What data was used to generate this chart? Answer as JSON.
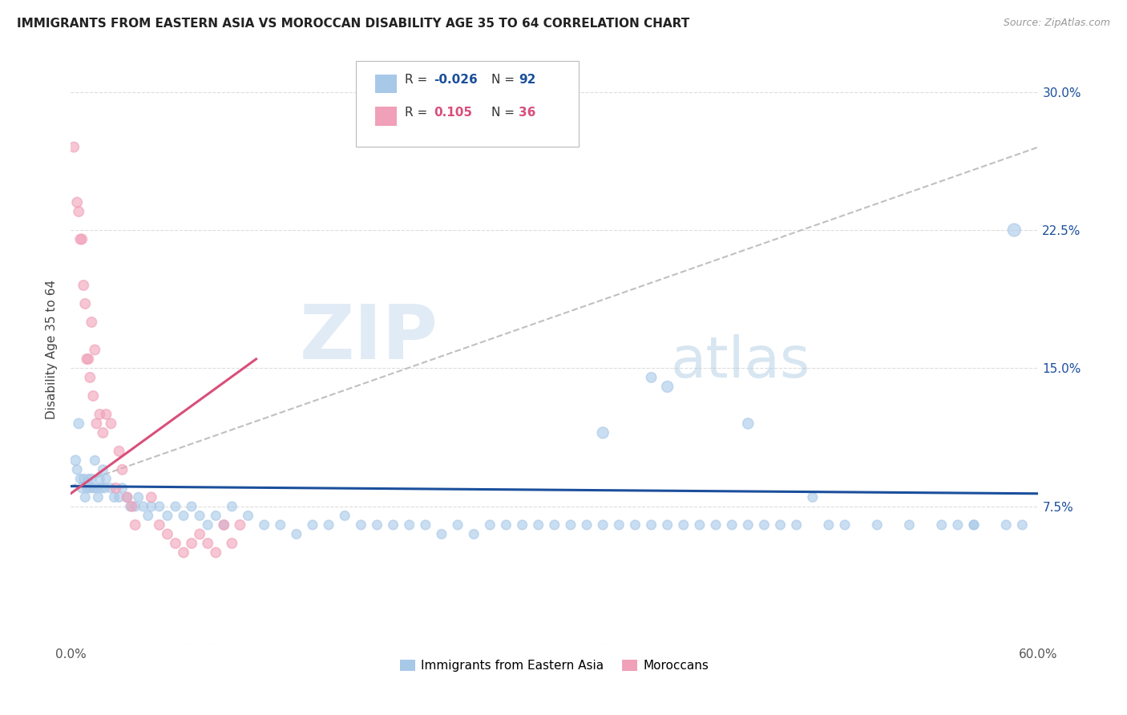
{
  "title": "IMMIGRANTS FROM EASTERN ASIA VS MOROCCAN DISABILITY AGE 35 TO 64 CORRELATION CHART",
  "source": "Source: ZipAtlas.com",
  "ylabel": "Disability Age 35 to 64",
  "xlim": [
    0.0,
    0.6
  ],
  "ylim": [
    0.0,
    0.32
  ],
  "xticks": [
    0.0,
    0.1,
    0.2,
    0.3,
    0.4,
    0.5,
    0.6
  ],
  "xticklabels": [
    "0.0%",
    "",
    "",
    "",
    "",
    "",
    "60.0%"
  ],
  "yticks": [
    0.0,
    0.075,
    0.15,
    0.225,
    0.3
  ],
  "yticklabels_right": [
    "",
    "7.5%",
    "15.0%",
    "22.5%",
    "30.0%"
  ],
  "legend_blue_label": "Immigrants from Eastern Asia",
  "legend_pink_label": "Moroccans",
  "R_blue": -0.026,
  "N_blue": 92,
  "R_pink": 0.105,
  "N_pink": 36,
  "blue_color": "#A8C8E8",
  "pink_color": "#F0A0B8",
  "blue_line_color": "#1B4F9C",
  "pink_line_color": "#D94F7A",
  "gray_dash_color": "#C0C0C0",
  "watermark_zip": "ZIP",
  "watermark_atlas": "atlas",
  "blue_line_x": [
    0.0,
    0.6
  ],
  "blue_line_y": [
    0.086,
    0.082
  ],
  "pink_line_x": [
    0.0,
    0.115
  ],
  "pink_line_y": [
    0.082,
    0.155
  ],
  "gray_line_x": [
    0.0,
    0.6
  ],
  "gray_line_y": [
    0.086,
    0.27
  ],
  "blue_scatter_x": [
    0.003,
    0.004,
    0.005,
    0.006,
    0.007,
    0.008,
    0.009,
    0.01,
    0.011,
    0.012,
    0.013,
    0.014,
    0.015,
    0.016,
    0.017,
    0.018,
    0.019,
    0.02,
    0.021,
    0.022,
    0.025,
    0.027,
    0.03,
    0.032,
    0.035,
    0.037,
    0.04,
    0.042,
    0.045,
    0.048,
    0.05,
    0.055,
    0.06,
    0.065,
    0.07,
    0.075,
    0.08,
    0.085,
    0.09,
    0.095,
    0.1,
    0.11,
    0.12,
    0.13,
    0.14,
    0.15,
    0.16,
    0.17,
    0.18,
    0.19,
    0.2,
    0.21,
    0.22,
    0.23,
    0.24,
    0.25,
    0.26,
    0.27,
    0.28,
    0.29,
    0.3,
    0.31,
    0.32,
    0.33,
    0.34,
    0.35,
    0.36,
    0.37,
    0.38,
    0.39,
    0.4,
    0.41,
    0.42,
    0.43,
    0.44,
    0.45,
    0.46,
    0.47,
    0.48,
    0.5,
    0.52,
    0.54,
    0.55,
    0.56,
    0.58,
    0.59,
    0.33,
    0.36,
    0.37,
    0.42,
    0.56,
    0.585
  ],
  "blue_scatter_y": [
    0.1,
    0.095,
    0.12,
    0.09,
    0.085,
    0.09,
    0.08,
    0.085,
    0.09,
    0.085,
    0.09,
    0.085,
    0.1,
    0.085,
    0.08,
    0.09,
    0.085,
    0.095,
    0.085,
    0.09,
    0.085,
    0.08,
    0.08,
    0.085,
    0.08,
    0.075,
    0.075,
    0.08,
    0.075,
    0.07,
    0.075,
    0.075,
    0.07,
    0.075,
    0.07,
    0.075,
    0.07,
    0.065,
    0.07,
    0.065,
    0.075,
    0.07,
    0.065,
    0.065,
    0.06,
    0.065,
    0.065,
    0.07,
    0.065,
    0.065,
    0.065,
    0.065,
    0.065,
    0.06,
    0.065,
    0.06,
    0.065,
    0.065,
    0.065,
    0.065,
    0.065,
    0.065,
    0.065,
    0.065,
    0.065,
    0.065,
    0.065,
    0.065,
    0.065,
    0.065,
    0.065,
    0.065,
    0.065,
    0.065,
    0.065,
    0.065,
    0.08,
    0.065,
    0.065,
    0.065,
    0.065,
    0.065,
    0.065,
    0.065,
    0.065,
    0.065,
    0.115,
    0.145,
    0.14,
    0.12,
    0.065,
    0.225
  ],
  "blue_scatter_size": [
    80,
    70,
    80,
    70,
    70,
    70,
    70,
    70,
    70,
    70,
    70,
    70,
    70,
    70,
    70,
    70,
    70,
    70,
    70,
    70,
    70,
    70,
    70,
    70,
    70,
    70,
    70,
    70,
    70,
    70,
    70,
    70,
    70,
    70,
    70,
    70,
    70,
    70,
    70,
    70,
    70,
    70,
    70,
    70,
    70,
    70,
    70,
    70,
    70,
    70,
    70,
    70,
    70,
    70,
    70,
    70,
    70,
    70,
    70,
    70,
    70,
    70,
    70,
    70,
    70,
    70,
    70,
    70,
    70,
    70,
    70,
    70,
    70,
    70,
    70,
    70,
    70,
    70,
    70,
    70,
    70,
    70,
    70,
    70,
    70,
    70,
    100,
    80,
    100,
    90,
    70,
    130
  ],
  "pink_scatter_x": [
    0.002,
    0.004,
    0.005,
    0.006,
    0.007,
    0.008,
    0.009,
    0.01,
    0.011,
    0.012,
    0.013,
    0.014,
    0.015,
    0.016,
    0.018,
    0.02,
    0.022,
    0.025,
    0.028,
    0.03,
    0.032,
    0.035,
    0.038,
    0.04,
    0.05,
    0.055,
    0.06,
    0.065,
    0.07,
    0.075,
    0.08,
    0.085,
    0.09,
    0.095,
    0.1,
    0.105
  ],
  "pink_scatter_y": [
    0.27,
    0.24,
    0.235,
    0.22,
    0.22,
    0.195,
    0.185,
    0.155,
    0.155,
    0.145,
    0.175,
    0.135,
    0.16,
    0.12,
    0.125,
    0.115,
    0.125,
    0.12,
    0.085,
    0.105,
    0.095,
    0.08,
    0.075,
    0.065,
    0.08,
    0.065,
    0.06,
    0.055,
    0.05,
    0.055,
    0.06,
    0.055,
    0.05,
    0.065,
    0.055,
    0.065
  ],
  "pink_scatter_size": [
    80,
    80,
    80,
    80,
    80,
    80,
    80,
    80,
    80,
    80,
    80,
    80,
    80,
    80,
    80,
    80,
    80,
    80,
    80,
    80,
    80,
    80,
    80,
    80,
    80,
    80,
    80,
    80,
    80,
    80,
    80,
    80,
    80,
    80,
    80,
    80
  ]
}
